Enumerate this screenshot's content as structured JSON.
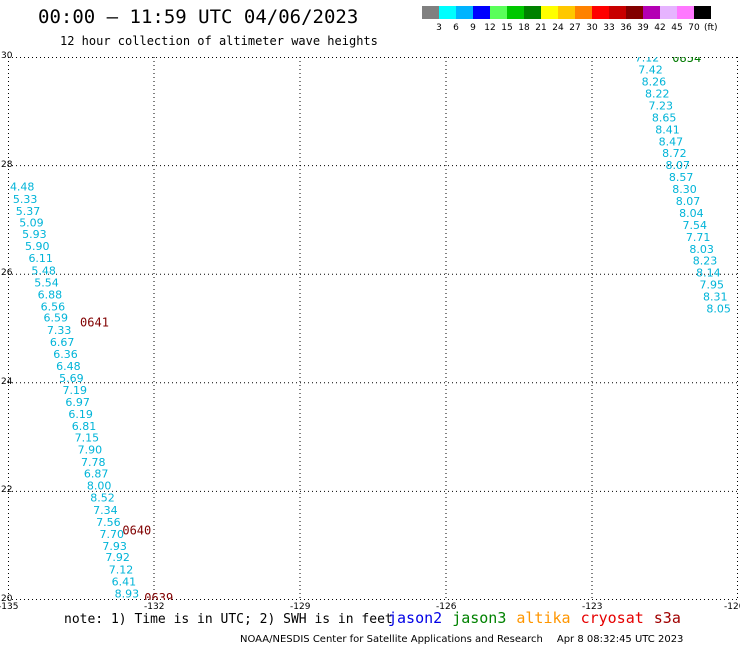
{
  "header": {
    "title": "00:00 — 11:59 UTC 04/06/2023",
    "subtitle": "12 hour collection of altimeter wave heights"
  },
  "legend": {
    "swatch_colors": [
      "#808080",
      "#00ffff",
      "#00b4ff",
      "#0000ff",
      "#5aff5a",
      "#00c800",
      "#008200",
      "#ffff00",
      "#ffc800",
      "#ff8200",
      "#ff0000",
      "#c80000",
      "#820000",
      "#b400b4",
      "#e6b4ff",
      "#ff78ff",
      "#000000"
    ],
    "tick_labels": [
      "3",
      "6",
      "9",
      "12",
      "15",
      "18",
      "21",
      "24",
      "27",
      "30",
      "33",
      "36",
      "39",
      "42",
      "45",
      "70"
    ],
    "unit": "(ft)"
  },
  "map": {
    "lon_range": [
      -135,
      -120
    ],
    "lat_range": [
      20,
      30
    ],
    "lon_ticks": [
      -135,
      -132,
      -129,
      -126,
      -123,
      -120
    ],
    "lon_tick_labels": [
      "-135",
      "-132",
      "-129",
      "-126",
      "-123",
      "-120"
    ],
    "lat_ticks": [
      30,
      28,
      26,
      24,
      22,
      20
    ],
    "lat_tick_labels": [
      "30",
      "28",
      "26",
      "24",
      "22",
      "20"
    ],
    "grid_color": "#000000",
    "swh_color": "#00b4d8",
    "tracks": [
      {
        "time_labels": [
          {
            "text": "0641",
            "lon": -133.52,
            "lat": 25.1,
            "color": "#800000"
          },
          {
            "text": "0640",
            "lon": -132.65,
            "lat": 21.27,
            "color": "#800000"
          },
          {
            "text": "0639",
            "lon": -132.2,
            "lat": 20.03,
            "color": "#800000"
          }
        ],
        "points": [
          {
            "lon": -134.96,
            "lat": 27.6,
            "swh": "4.48"
          },
          {
            "lon": -134.9,
            "lat": 27.37,
            "swh": "5.33"
          },
          {
            "lon": -134.84,
            "lat": 27.15,
            "swh": "5.37"
          },
          {
            "lon": -134.77,
            "lat": 26.93,
            "swh": "5.09"
          },
          {
            "lon": -134.71,
            "lat": 26.72,
            "swh": "5.93"
          },
          {
            "lon": -134.65,
            "lat": 26.5,
            "swh": "5.90"
          },
          {
            "lon": -134.58,
            "lat": 26.28,
            "swh": "6.11"
          },
          {
            "lon": -134.52,
            "lat": 26.05,
            "swh": "5.48"
          },
          {
            "lon": -134.46,
            "lat": 25.83,
            "swh": "5.54"
          },
          {
            "lon": -134.39,
            "lat": 25.61,
            "swh": "6.88"
          },
          {
            "lon": -134.33,
            "lat": 25.39,
            "swh": "6.56"
          },
          {
            "lon": -134.27,
            "lat": 25.18,
            "swh": "6.59"
          },
          {
            "lon": -134.2,
            "lat": 24.95,
            "swh": "7.33"
          },
          {
            "lon": -134.14,
            "lat": 24.73,
            "swh": "6.67"
          },
          {
            "lon": -134.07,
            "lat": 24.51,
            "swh": "6.36"
          },
          {
            "lon": -134.01,
            "lat": 24.29,
            "swh": "6.48"
          },
          {
            "lon": -133.95,
            "lat": 24.07,
            "swh": "5.69"
          },
          {
            "lon": -133.88,
            "lat": 23.85,
            "swh": "7.19"
          },
          {
            "lon": -133.82,
            "lat": 23.63,
            "swh": "6.97"
          },
          {
            "lon": -133.76,
            "lat": 23.41,
            "swh": "6.19"
          },
          {
            "lon": -133.69,
            "lat": 23.19,
            "swh": "6.81"
          },
          {
            "lon": -133.63,
            "lat": 22.97,
            "swh": "7.15"
          },
          {
            "lon": -133.57,
            "lat": 22.75,
            "swh": "7.90"
          },
          {
            "lon": -133.5,
            "lat": 22.52,
            "swh": "7.78"
          },
          {
            "lon": -133.44,
            "lat": 22.31,
            "swh": "6.87"
          },
          {
            "lon": -133.38,
            "lat": 22.09,
            "swh": "8.00"
          },
          {
            "lon": -133.31,
            "lat": 21.87,
            "swh": "8.52"
          },
          {
            "lon": -133.25,
            "lat": 21.64,
            "swh": "7.34"
          },
          {
            "lon": -133.19,
            "lat": 21.42,
            "swh": "7.56"
          },
          {
            "lon": -133.12,
            "lat": 21.2,
            "swh": "7.70"
          },
          {
            "lon": -133.06,
            "lat": 20.98,
            "swh": "7.93"
          },
          {
            "lon": -133.0,
            "lat": 20.77,
            "swh": "7.92"
          },
          {
            "lon": -132.93,
            "lat": 20.54,
            "swh": "7.12"
          },
          {
            "lon": -132.87,
            "lat": 20.32,
            "swh": "6.41"
          },
          {
            "lon": -132.81,
            "lat": 20.1,
            "swh": "8.93"
          }
        ]
      },
      {
        "time_labels": [
          {
            "text": "0854",
            "lon": -121.35,
            "lat": 29.97,
            "color": "#007a00"
          }
        ],
        "points": [
          {
            "lon": -122.12,
            "lat": 29.97,
            "swh": "7.12"
          },
          {
            "lon": -122.05,
            "lat": 29.75,
            "swh": "7.42"
          },
          {
            "lon": -121.98,
            "lat": 29.53,
            "swh": "8.26"
          },
          {
            "lon": -121.91,
            "lat": 29.31,
            "swh": "8.22"
          },
          {
            "lon": -121.84,
            "lat": 29.09,
            "swh": "7.23"
          },
          {
            "lon": -121.77,
            "lat": 28.87,
            "swh": "8.65"
          },
          {
            "lon": -121.7,
            "lat": 28.65,
            "swh": "8.41"
          },
          {
            "lon": -121.63,
            "lat": 28.43,
            "swh": "8.47"
          },
          {
            "lon": -121.56,
            "lat": 28.21,
            "swh": "8.72"
          },
          {
            "lon": -121.49,
            "lat": 27.99,
            "swh": "8.07"
          },
          {
            "lon": -121.42,
            "lat": 27.77,
            "swh": "8.57"
          },
          {
            "lon": -121.35,
            "lat": 27.55,
            "swh": "8.30"
          },
          {
            "lon": -121.28,
            "lat": 27.33,
            "swh": "8.07"
          },
          {
            "lon": -121.21,
            "lat": 27.11,
            "swh": "8.04"
          },
          {
            "lon": -121.14,
            "lat": 26.89,
            "swh": "7.54"
          },
          {
            "lon": -121.07,
            "lat": 26.67,
            "swh": "7.71"
          },
          {
            "lon": -121.0,
            "lat": 26.45,
            "swh": "8.03"
          },
          {
            "lon": -120.93,
            "lat": 26.23,
            "swh": "8.23"
          },
          {
            "lon": -120.86,
            "lat": 26.01,
            "swh": "8.14"
          },
          {
            "lon": -120.79,
            "lat": 25.79,
            "swh": "7.95"
          },
          {
            "lon": -120.72,
            "lat": 25.57,
            "swh": "8.31"
          },
          {
            "lon": -120.65,
            "lat": 25.35,
            "swh": "8.05"
          }
        ]
      }
    ]
  },
  "footer": {
    "note": "note: 1) Time is in UTC; 2) SWH is in feet",
    "satellites": [
      {
        "name": "jason2",
        "color": "#0000e6"
      },
      {
        "name": "jason3",
        "color": "#008200"
      },
      {
        "name": "altika",
        "color": "#ff9600"
      },
      {
        "name": "cryosat",
        "color": "#e60000"
      },
      {
        "name": "s3a",
        "color": "#a00000"
      }
    ],
    "credit": "NOAA/NESDIS Center for Satellite Applications and Research",
    "timestamp": "Apr  8 08:32:45 UTC 2023"
  }
}
